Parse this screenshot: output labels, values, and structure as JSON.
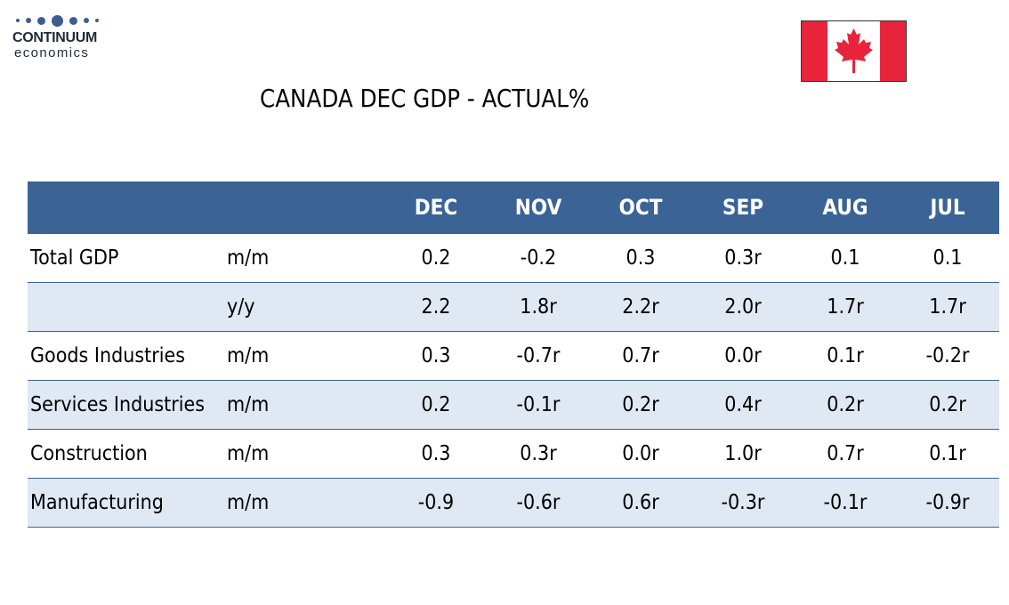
{
  "logo": {
    "name": "CONTINUUM",
    "sub": "economics"
  },
  "title": "CANADA DEC GDP - ACTUAL%",
  "colors": {
    "header_bg": "#3b6396",
    "shade_row": "#dfe8f3",
    "flag_red": "#e8243c"
  },
  "table": {
    "columns": [
      "DEC",
      "NOV",
      "OCT",
      "SEP",
      "AUG",
      "JUL"
    ],
    "rows": [
      {
        "label": "Total GDP",
        "unit": "m/m",
        "values": [
          "0.2",
          "-0.2",
          "0.3",
          "0.3r",
          "0.1",
          "0.1"
        ]
      },
      {
        "label": "",
        "unit": "y/y",
        "values": [
          "2.2",
          "1.8r",
          "2.2r",
          "2.0r",
          "1.7r",
          "1.7r"
        ]
      },
      {
        "label": "Goods Industries",
        "unit": "m/m",
        "values": [
          "0.3",
          "-0.7r",
          "0.7r",
          "0.0r",
          "0.1r",
          "-0.2r"
        ]
      },
      {
        "label": "Services Industries",
        "unit": "m/m",
        "values": [
          "0.2",
          "-0.1r",
          "0.2r",
          "0.4r",
          "0.2r",
          "0.2r"
        ]
      },
      {
        "label": "Construction",
        "unit": "m/m",
        "values": [
          "0.3",
          "0.3r",
          "0.0r",
          "1.0r",
          "0.7r",
          "0.1r"
        ]
      },
      {
        "label": "Manufacturing",
        "unit": "m/m",
        "values": [
          "-0.9",
          "-0.6r",
          "0.6r",
          "-0.3r",
          "-0.1r",
          "-0.9r"
        ]
      }
    ]
  }
}
